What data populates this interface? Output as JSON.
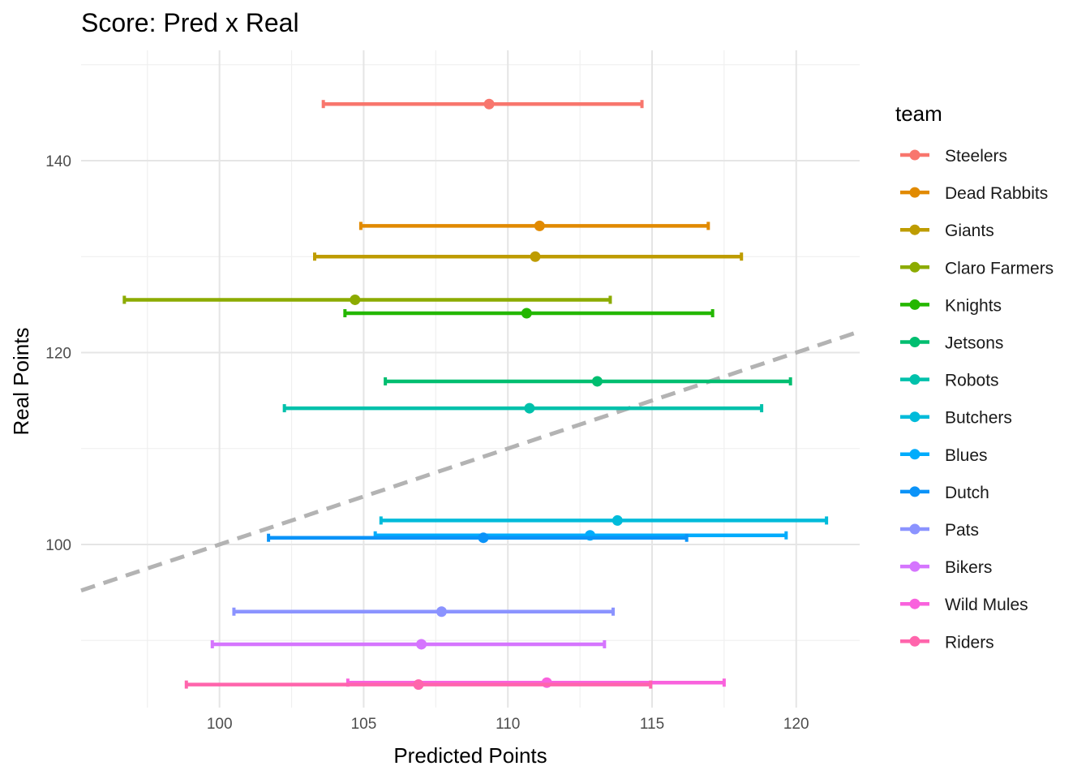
{
  "chart_data": {
    "type": "scatter",
    "title": "Score: Pred x Real",
    "xlabel": "Predicted Points",
    "ylabel": "Real Points",
    "xlim": [
      95.2,
      122.2
    ],
    "ylim": [
      83.0,
      151.5
    ],
    "xticks": [
      100,
      105,
      110,
      115,
      120
    ],
    "yticks": [
      100,
      120,
      140
    ],
    "xtick_labels": [
      "100",
      "105",
      "110",
      "115",
      "120"
    ],
    "ytick_labels": [
      "100",
      "120",
      "140"
    ],
    "grid": true,
    "reference_line": {
      "slope": 1,
      "intercept": 0,
      "style": "dashed",
      "color": "#b3b3b3"
    },
    "legend_title": "team",
    "legend_position": "right",
    "series": [
      {
        "name": "Steelers",
        "color": "#F8766D",
        "x": 109.35,
        "y": 145.9,
        "xmin": 103.6,
        "xmax": 114.65
      },
      {
        "name": "Dead Rabbits",
        "color": "#E18A00",
        "x": 111.1,
        "y": 133.2,
        "xmin": 104.9,
        "xmax": 116.95
      },
      {
        "name": "Giants",
        "color": "#BE9C00",
        "x": 110.95,
        "y": 130.0,
        "xmin": 103.3,
        "xmax": 118.1
      },
      {
        "name": "Claro Farmers",
        "color": "#8CAB00",
        "x": 104.7,
        "y": 125.5,
        "xmin": 96.7,
        "xmax": 113.55
      },
      {
        "name": "Knights",
        "color": "#24B700",
        "x": 110.65,
        "y": 124.1,
        "xmin": 104.35,
        "xmax": 117.1
      },
      {
        "name": "Jetsons",
        "color": "#00BE70",
        "x": 113.1,
        "y": 117.0,
        "xmin": 105.75,
        "xmax": 119.8
      },
      {
        "name": "Robots",
        "color": "#00C1AB",
        "x": 110.75,
        "y": 114.2,
        "xmin": 102.25,
        "xmax": 118.8
      },
      {
        "name": "Butchers",
        "color": "#00BBDA",
        "x": 113.8,
        "y": 102.5,
        "xmin": 105.6,
        "xmax": 121.05
      },
      {
        "name": "Blues",
        "color": "#00ACFC",
        "x": 112.85,
        "y": 100.95,
        "xmin": 105.4,
        "xmax": 119.65
      },
      {
        "name": "Dutch",
        "color": "#0B93F8",
        "x": 109.15,
        "y": 100.7,
        "xmin": 101.7,
        "xmax": 116.2
      },
      {
        "name": "Pats",
        "color": "#8B93FF",
        "x": 107.7,
        "y": 93.0,
        "xmin": 100.5,
        "xmax": 113.65
      },
      {
        "name": "Bikers",
        "color": "#D575FE",
        "x": 107.0,
        "y": 89.6,
        "xmin": 99.75,
        "xmax": 113.35
      },
      {
        "name": "Wild Mules",
        "color": "#F962DD",
        "x": 111.35,
        "y": 85.6,
        "xmin": 104.45,
        "xmax": 117.5
      },
      {
        "name": "Riders",
        "color": "#FF65AC",
        "x": 106.9,
        "y": 85.4,
        "xmin": 98.85,
        "xmax": 114.95
      }
    ]
  }
}
